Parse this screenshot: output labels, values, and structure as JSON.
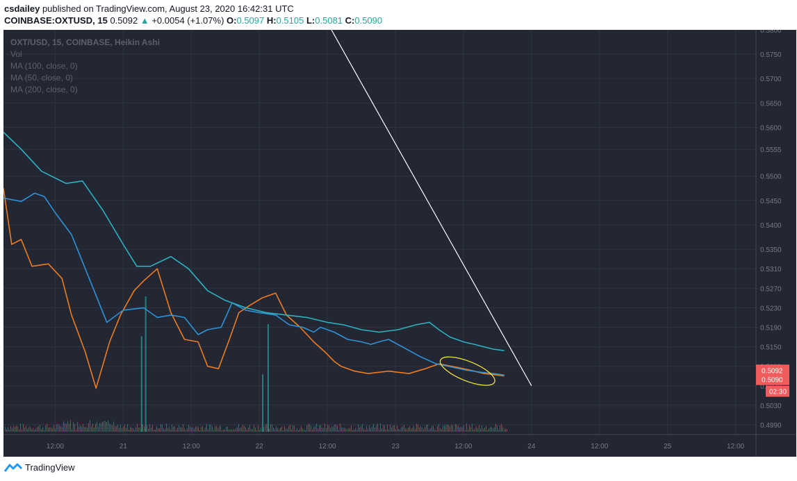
{
  "header": {
    "author": "csdailey",
    "published_text": "published on TradingView.com, August 23, 2020 16:42:31 UTC",
    "symbol": "COINBASE:OXTUSD, 15",
    "last": "0.5092",
    "change_arrow": "▲",
    "change": "+0.0054 (+1.07%)",
    "o_label": "O:",
    "o": "0.5097",
    "h_label": "H:",
    "h": "0.5105",
    "l_label": "L:",
    "l": "0.5081",
    "c_label": "C:",
    "c": "0.5090"
  },
  "legend": {
    "title": "OXT/USD, 15, COINBASE, Heikin Ashi",
    "vol": "Vol",
    "ma100": "MA (100, close, 0)",
    "ma50": "MA (50, close, 0)",
    "ma200": "MA (200, close, 0)"
  },
  "footer": {
    "brand": "TradingView"
  },
  "colors": {
    "background": "#232733",
    "grid": "#2f3442",
    "ma_orange": "#f07c21",
    "ma_blue": "#2f93d6",
    "ma_teal": "#2cb3c1",
    "trendline": "#ffffff",
    "ellipse": "#f3e33b",
    "price_tag": "#f15b5b",
    "vol_up": "#26a69a",
    "vol_down": "#ef5350"
  },
  "chart_data": {
    "type": "line",
    "ylim": [
      0.497,
      0.58
    ],
    "y_ticks": [
      "0.5800",
      "0.5750",
      "0.5700",
      "0.5650",
      "0.5600",
      "0.5555",
      "0.5500",
      "0.5450",
      "0.5400",
      "0.5350",
      "0.5310",
      "0.5270",
      "0.5230",
      "0.5190",
      "0.5150",
      "0.5110",
      "0.5070",
      "0.5030",
      "0.4990"
    ],
    "y_tick_values": [
      0.58,
      0.575,
      0.57,
      0.565,
      0.56,
      0.5555,
      0.55,
      0.545,
      0.54,
      0.535,
      0.531,
      0.527,
      0.523,
      0.519,
      0.515,
      0.511,
      0.507,
      0.503,
      0.499
    ],
    "x_ticks": [
      "12:00",
      "21",
      "12:00",
      "22",
      "12:00",
      "23",
      "12:00",
      "24",
      "12:00",
      "25",
      "12:00"
    ],
    "x_tick_values": [
      0.5,
      1,
      1.5,
      2,
      2.5,
      3,
      3.5,
      4,
      4.5,
      5,
      5.5
    ],
    "xlim": [
      0.12,
      5.65
    ],
    "price_tags": [
      "0.5092",
      "0.5090"
    ],
    "countdown": "02:30",
    "series": [
      {
        "color_key": "ma_orange",
        "x": [
          0.12,
          0.18,
          0.25,
          0.33,
          0.45,
          0.55,
          0.62,
          0.72,
          0.8,
          0.9,
          0.98,
          1.08,
          1.15,
          1.25,
          1.35,
          1.45,
          1.55,
          1.62,
          1.7,
          1.78,
          1.85,
          1.93,
          2.02,
          2.12,
          2.2,
          2.3,
          2.4,
          2.48,
          2.55,
          2.6,
          2.7,
          2.8,
          2.95,
          3.1,
          3.22,
          3.32,
          3.45,
          3.55,
          3.65,
          3.75,
          3.8
        ],
        "y": [
          0.5475,
          0.536,
          0.537,
          0.5315,
          0.532,
          0.529,
          0.5215,
          0.514,
          0.5065,
          0.516,
          0.5215,
          0.5265,
          0.5285,
          0.531,
          0.522,
          0.5165,
          0.516,
          0.511,
          0.5105,
          0.5165,
          0.522,
          0.5235,
          0.525,
          0.526,
          0.5215,
          0.519,
          0.516,
          0.514,
          0.512,
          0.511,
          0.51,
          0.5095,
          0.51,
          0.5095,
          0.5105,
          0.5115,
          0.5108,
          0.5102,
          0.5095,
          0.5092,
          0.509
        ]
      },
      {
        "color_key": "ma_blue",
        "x": [
          0.12,
          0.25,
          0.35,
          0.42,
          0.5,
          0.62,
          0.75,
          0.88,
          1.0,
          1.15,
          1.25,
          1.35,
          1.45,
          1.55,
          1.62,
          1.72,
          1.8,
          1.9,
          2.0,
          2.12,
          2.22,
          2.32,
          2.4,
          2.45,
          2.55,
          2.65,
          2.75,
          2.82,
          2.88,
          2.95,
          3.05,
          3.18,
          3.3,
          3.42,
          3.52,
          3.62,
          3.72,
          3.8
        ],
        "y": [
          0.5455,
          0.5448,
          0.5465,
          0.5458,
          0.5425,
          0.538,
          0.529,
          0.52,
          0.5225,
          0.523,
          0.521,
          0.5215,
          0.521,
          0.5175,
          0.5185,
          0.519,
          0.524,
          0.5225,
          0.522,
          0.5215,
          0.5195,
          0.519,
          0.518,
          0.519,
          0.518,
          0.5165,
          0.516,
          0.5155,
          0.516,
          0.5165,
          0.515,
          0.513,
          0.5115,
          0.5108,
          0.5102,
          0.5098,
          0.5095,
          0.5092
        ]
      },
      {
        "color_key": "ma_teal",
        "x": [
          0.12,
          0.25,
          0.4,
          0.58,
          0.7,
          0.85,
          1.0,
          1.1,
          1.2,
          1.35,
          1.48,
          1.62,
          1.75,
          1.9,
          2.05,
          2.2,
          2.35,
          2.5,
          2.62,
          2.75,
          2.88,
          3.02,
          3.15,
          3.25,
          3.32,
          3.4,
          3.5,
          3.58,
          3.65,
          3.72,
          3.8
        ],
        "y": [
          0.559,
          0.5555,
          0.551,
          0.5485,
          0.549,
          0.543,
          0.536,
          0.5315,
          0.5315,
          0.5335,
          0.531,
          0.5265,
          0.5245,
          0.523,
          0.522,
          0.5215,
          0.521,
          0.52,
          0.5195,
          0.5185,
          0.518,
          0.5185,
          0.5195,
          0.52,
          0.5185,
          0.517,
          0.516,
          0.5155,
          0.515,
          0.5145,
          0.5142
        ]
      },
      {
        "color_key": "trendline",
        "x": [
          2.53,
          4.0
        ],
        "y": [
          0.58,
          0.507
        ]
      }
    ],
    "volume": {
      "spike_x": [
        1.13,
        1.16,
        2.02,
        2.06
      ],
      "spike_h": [
        0.55,
        0.78,
        0.33,
        0.62
      ]
    }
  }
}
